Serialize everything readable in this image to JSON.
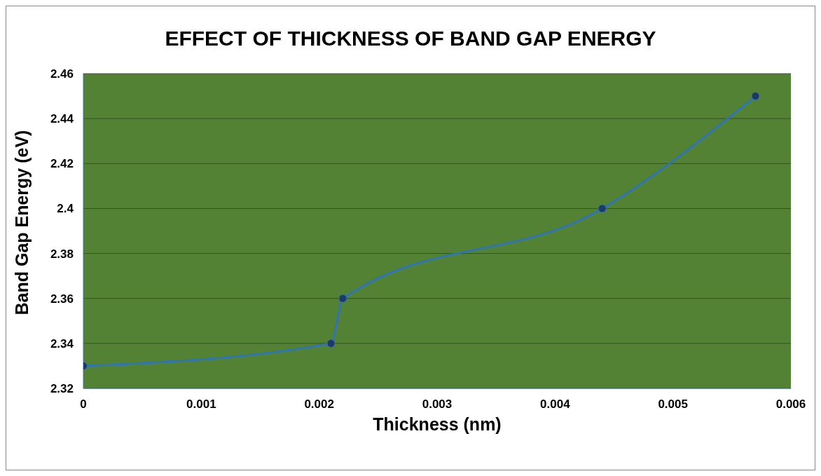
{
  "chart_data": {
    "type": "line",
    "title": "EFFECT OF THICKNESS OF BAND GAP ENERGY",
    "xlabel": "Thickness (nm)",
    "ylabel": "Band Gap Energy (eV)",
    "x": [
      0,
      0.0021,
      0.0022,
      0.0044,
      0.0057
    ],
    "series": [
      {
        "color": "#2e75b6",
        "values": [
          2.33,
          2.34,
          2.36,
          2.4,
          2.45
        ]
      }
    ],
    "xlim": [
      0,
      0.006
    ],
    "xticks": [
      0,
      0.001,
      0.002,
      0.003,
      0.004,
      0.005,
      0.006
    ],
    "ylim": [
      2.32,
      2.46
    ],
    "yticks": [
      2.32,
      2.34,
      2.36,
      2.38,
      2.4,
      2.42,
      2.44,
      2.46
    ],
    "grid": "y",
    "marker": "circle",
    "line_style": "solid"
  }
}
